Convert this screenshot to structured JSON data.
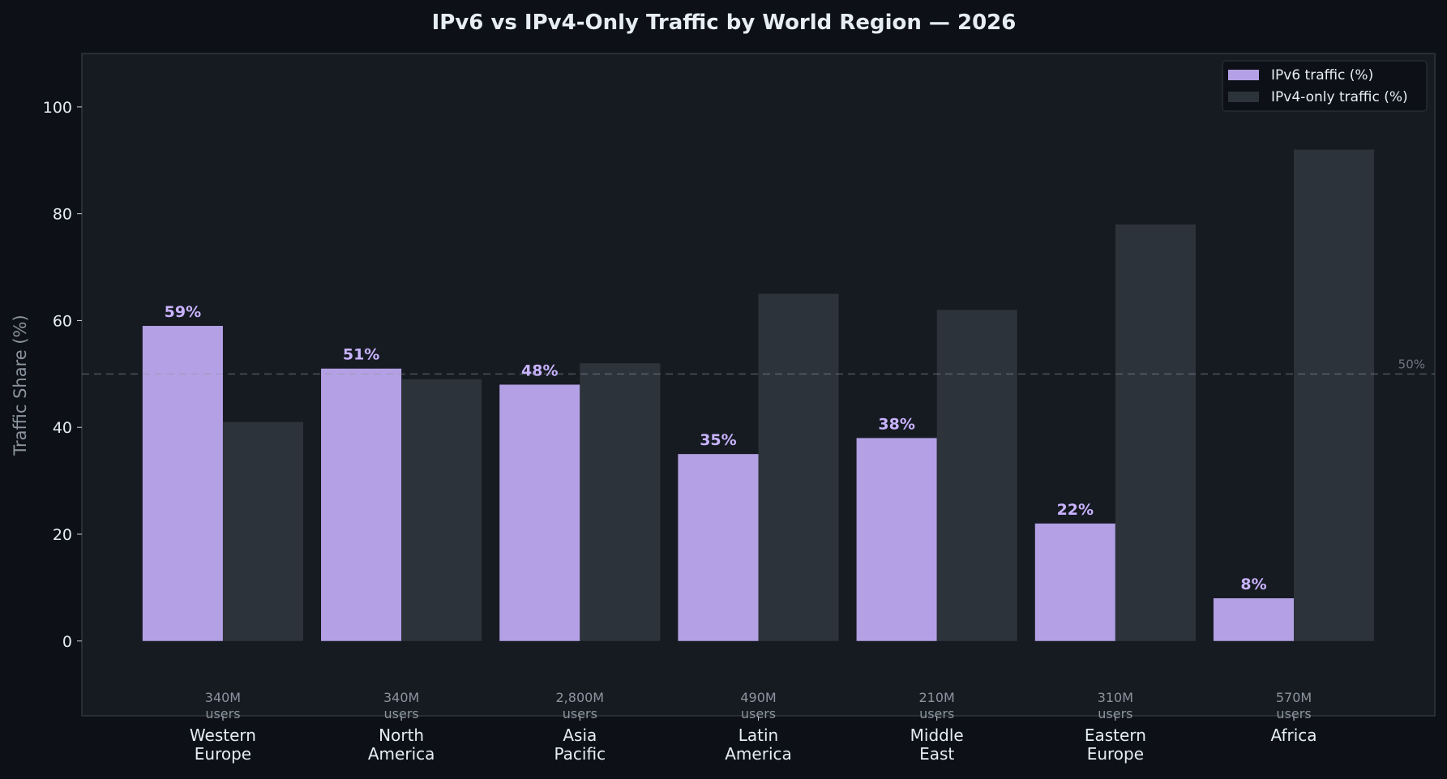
{
  "chart_data": {
    "type": "bar",
    "title": "IPv6 vs IPv4-Only Traffic by World Region — 2026",
    "xlabel": "",
    "ylabel": "Traffic Share (%)",
    "ylim": [
      -14,
      110
    ],
    "yticks": [
      0,
      20,
      40,
      60,
      80,
      100
    ],
    "grid": false,
    "legend": "top-right",
    "categories": [
      "Western\nEurope",
      "North\nAmerica",
      "Asia\nPacific",
      "Latin\nAmerica",
      "Middle\nEast",
      "Eastern\nEurope",
      "Africa"
    ],
    "users": [
      "340M\nusers",
      "340M\nusers",
      "2,800M\nusers",
      "490M\nusers",
      "210M\nusers",
      "310M\nusers",
      "570M\nusers"
    ],
    "series": [
      {
        "name": "IPv6 traffic (%)",
        "values": [
          59,
          51,
          48,
          35,
          38,
          22,
          8
        ],
        "color": "#b4a0e5",
        "data_labels": [
          "59%",
          "51%",
          "48%",
          "35%",
          "38%",
          "22%",
          "8%"
        ]
      },
      {
        "name": "IPv4-only traffic (%)",
        "values": [
          41,
          49,
          52,
          65,
          62,
          78,
          92
        ],
        "color": "#2d333b"
      }
    ],
    "reference_line": {
      "value": 50,
      "label": "50%"
    },
    "colors": {
      "background": "#0d1117",
      "plot_background": "#161b22",
      "data_label": "#c9b3ff"
    }
  }
}
